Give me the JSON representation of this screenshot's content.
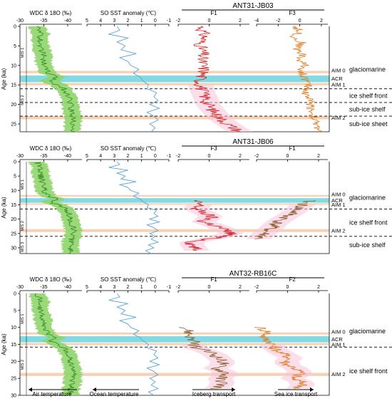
{
  "figure": {
    "y_axis_label": "Age (ka)",
    "column_titles": [
      "WDC δ 18O (‰)",
      "SO SST anomaly (℃)"
    ]
  },
  "colors": {
    "wdc_line": "#2e8b1e",
    "wdc_band": "#8fd46a",
    "sst_line": "#5aa3d6",
    "f_line_red": "#d42424",
    "f_line_orange": "#e07a22",
    "f_line_brown": "#8b5a2b",
    "acr_band": "#6dd3de",
    "aim_band": "#f6c9a8",
    "pink_glow": "#f7c2d8",
    "label_orange": "#d9531e",
    "label_teal": "#1aa6a6"
  },
  "panels": [
    {
      "core": "ANT31-JB03",
      "ylim": [
        0,
        27
      ],
      "yticks": [
        0,
        5,
        10,
        15,
        20,
        25
      ],
      "mis": [
        "MIS 1",
        "MIS 2"
      ],
      "factors": [
        {
          "name": "F1",
          "ticks": [
            "-2",
            "0",
            "2"
          ],
          "xlim": [
            -2,
            2.6
          ],
          "color": "red",
          "start": 0,
          "end": 27,
          "x": [
            -0.5,
            -0.4,
            -0.3,
            -0.6,
            -0.5,
            -0.4,
            -0.5,
            -0.4,
            -0.3,
            -0.5,
            -0.6,
            -0.5,
            -0.4,
            -0.2,
            -0.1,
            0.2,
            0.5,
            0.9,
            1.4,
            2.0
          ]
        },
        {
          "name": "F3",
          "ticks": [
            "-4",
            "-2",
            "0",
            "2"
          ],
          "xlim": [
            -4,
            2.6
          ],
          "color": "orange",
          "start": 0,
          "end": 27,
          "x": [
            -0.4,
            0.0,
            -0.6,
            0.2,
            -0.3,
            0.3,
            -0.1,
            0.5,
            0.1,
            0.4,
            0.6,
            0.8,
            0.5,
            0.9,
            1.0,
            1.1,
            1.2,
            1.4,
            1.5,
            2.1
          ]
        }
      ],
      "bands": {
        "aim0": [
          11.4,
          12.0
        ],
        "acr": [
          12.6,
          14.3
        ],
        "aim1": [
          14.5,
          15.1
        ],
        "aim2": [
          23.0,
          23.8
        ]
      },
      "dashes": [
        16.0,
        19.5,
        23.0
      ],
      "band_labels": [
        "AIM 0",
        "ACR",
        "AIM 1",
        "AIM 2"
      ],
      "facies": [
        "glaciomarine",
        "ice shelf front",
        "sub-ice shelf",
        "sub-ice sheet"
      ]
    },
    {
      "core": "ANT31-JB06",
      "ylim": [
        0,
        32
      ],
      "yticks": [
        0,
        5,
        10,
        15,
        20,
        25,
        30
      ],
      "mis": [
        "MIS 1",
        "MIS 2",
        "MIS 3"
      ],
      "factors": [
        {
          "name": "F3",
          "ticks": [
            "-2",
            "0",
            "2"
          ],
          "xlim": [
            -2,
            2.6
          ],
          "color": "red",
          "start": 13.5,
          "end": 31,
          "x": [
            -1.0,
            -0.6,
            -0.9,
            -0.3,
            0.2,
            -0.5,
            0.4,
            1.0,
            1.5,
            0.3,
            -1.2,
            -1.0,
            -0.8
          ]
        },
        {
          "name": "F1",
          "ticks": [
            "-2",
            "0",
            "2"
          ],
          "xlim": [
            -2,
            2.6
          ],
          "color": "brown",
          "start": 13.5,
          "end": 27,
          "x": [
            1.4,
            1.0,
            0.7,
            0.4,
            0.0,
            -0.4,
            -0.8,
            -1.0,
            -1.4,
            -1.6,
            -1.9
          ]
        }
      ],
      "bands": {
        "aim0": [
          11.6,
          12.2
        ],
        "acr": [
          12.7,
          14.3
        ],
        "aim1": [
          14.5,
          15.0
        ],
        "aim2": [
          23.5,
          24.5
        ]
      },
      "dashes": [
        16.5,
        26.0
      ],
      "band_labels": [
        "AIM 0",
        "ACR",
        "AIM 1",
        "AIM 2"
      ],
      "facies": [
        "glaciomarine",
        "ice shelf front",
        "sub-ice shelf"
      ]
    },
    {
      "core": "ANT32-RB16C",
      "ylim": [
        0,
        30
      ],
      "yticks": [
        0,
        5,
        10,
        15,
        20,
        25,
        30
      ],
      "mis": [
        "MIS 1",
        "MIS 2"
      ],
      "factors": [
        {
          "name": "F1",
          "ticks": [
            "-2",
            "0",
            "2"
          ],
          "xlim": [
            -2,
            2.6
          ],
          "color": "brown",
          "start": 10,
          "end": 28,
          "x": [
            -1.5,
            -1.3,
            -1.2,
            -1.0,
            -0.9,
            0.2,
            0.6,
            1.0,
            0.4,
            1.2,
            0.7,
            0.9,
            0.5
          ]
        },
        {
          "name": "F2",
          "ticks": [
            "-2",
            "0",
            "2"
          ],
          "xlim": [
            -2,
            2.6
          ],
          "color": "orange",
          "start": 10,
          "end": 28,
          "x": [
            -1.8,
            -1.2,
            -1.6,
            -1.0,
            -0.9,
            -0.4,
            0.2,
            -0.2,
            0.5,
            0.9,
            0.3,
            1.1,
            0.7
          ]
        }
      ],
      "bands": {
        "aim0": [
          11.5,
          12.1
        ],
        "acr": [
          12.6,
          14.4
        ],
        "aim1": [
          14.6,
          15.2
        ],
        "aim2": [
          23.4,
          24.3
        ]
      },
      "dashes": [
        15.8
      ],
      "band_labels": [
        "AIM 0",
        "ACR",
        "AIM 1",
        "AIM 2"
      ],
      "facies": [
        "glaciomarine",
        "ice shelf front"
      ]
    }
  ],
  "shared_axes": {
    "wdc": {
      "xlim": [
        -30,
        -43
      ],
      "ticks": [
        "-30",
        "-35",
        "-40"
      ]
    },
    "sst": {
      "xlim": [
        5,
        -1
      ],
      "ticks": [
        "5",
        "4",
        "3",
        "2",
        "1",
        "0",
        "-1"
      ]
    }
  },
  "wdc_series": {
    "age": [
      0,
      2,
      4,
      6,
      8,
      10,
      12,
      13,
      14,
      15,
      16,
      18,
      20,
      22,
      24,
      26,
      28,
      30,
      32
    ],
    "d18o": [
      -33.5,
      -34.3,
      -34.2,
      -34.6,
      -34.9,
      -35.1,
      -35.8,
      -37.8,
      -36.2,
      -38.0,
      -39.2,
      -40.3,
      -40.6,
      -40.9,
      -41.2,
      -41.0,
      -40.7,
      -40.6,
      -40.8
    ]
  },
  "sst_series": {
    "age": [
      0,
      1,
      2,
      3,
      4,
      5,
      6,
      7,
      8,
      9,
      10,
      11,
      12,
      13,
      14,
      15,
      16,
      17,
      18,
      19,
      20,
      21,
      22,
      23,
      24,
      25,
      26,
      27,
      28,
      29,
      30,
      31,
      32
    ],
    "anomaly": [
      2.8,
      2.6,
      3.4,
      2.0,
      2.8,
      2.2,
      2.5,
      1.4,
      2.6,
      2.0,
      1.8,
      1.2,
      1.6,
      1.1,
      0.9,
      0.5,
      0.6,
      -0.1,
      0.1,
      -0.2,
      0.4,
      -0.3,
      0.6,
      0.1,
      -0.2,
      0.4,
      0.0,
      0.3,
      -0.2,
      0.5,
      0.1,
      0.7,
      0.3
    ]
  },
  "bottom_labels": [
    "Air temperature",
    "Ocean temperature",
    "Iceberg transport",
    "Sea ice transport"
  ]
}
